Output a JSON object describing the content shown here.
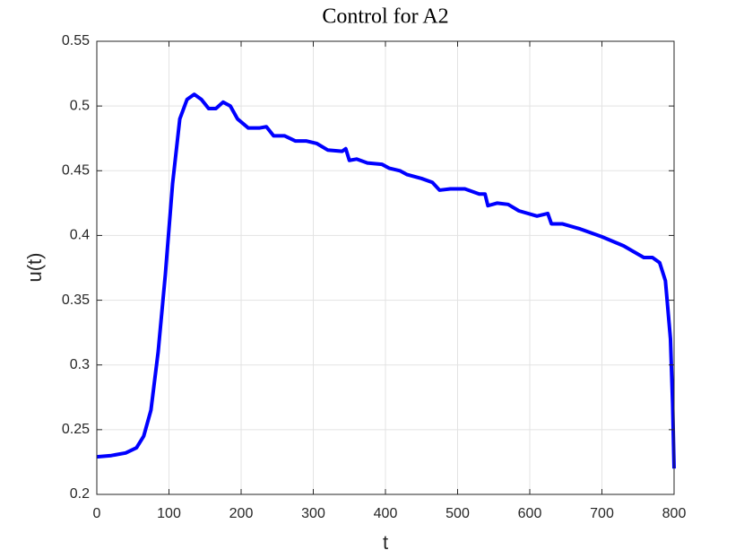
{
  "chart_data": {
    "type": "line",
    "title": "Control for A2",
    "xlabel": "t",
    "ylabel": "u(t)",
    "x": [
      0,
      20,
      40,
      55,
      65,
      75,
      85,
      95,
      105,
      115,
      125,
      135,
      145,
      155,
      165,
      175,
      185,
      195,
      210,
      225,
      235,
      245,
      260,
      275,
      290,
      305,
      320,
      340,
      345,
      350,
      360,
      375,
      395,
      405,
      420,
      430,
      450,
      465,
      475,
      490,
      510,
      530,
      538,
      542,
      555,
      570,
      585,
      610,
      625,
      630,
      645,
      670,
      700,
      730,
      758,
      770,
      780,
      788,
      795,
      798,
      800
    ],
    "series": [
      {
        "name": "u",
        "color": "#0000ff",
        "values": [
          0.229,
          0.23,
          0.232,
          0.236,
          0.245,
          0.265,
          0.31,
          0.37,
          0.44,
          0.49,
          0.505,
          0.509,
          0.505,
          0.498,
          0.498,
          0.503,
          0.5,
          0.49,
          0.483,
          0.483,
          0.484,
          0.477,
          0.477,
          0.473,
          0.473,
          0.471,
          0.466,
          0.465,
          0.467,
          0.458,
          0.459,
          0.456,
          0.455,
          0.452,
          0.45,
          0.447,
          0.444,
          0.441,
          0.435,
          0.436,
          0.436,
          0.432,
          0.432,
          0.423,
          0.425,
          0.424,
          0.419,
          0.415,
          0.417,
          0.409,
          0.409,
          0.405,
          0.399,
          0.392,
          0.383,
          0.383,
          0.379,
          0.365,
          0.32,
          0.27,
          0.22
        ]
      }
    ],
    "xlim": [
      0,
      800
    ],
    "xticks": [
      0,
      100,
      200,
      300,
      400,
      500,
      600,
      700,
      800
    ],
    "ylim": [
      0.2,
      0.55
    ],
    "yticks": [
      0.2,
      0.25,
      0.3,
      0.35,
      0.4,
      0.45,
      0.5,
      0.55
    ],
    "grid": true
  }
}
